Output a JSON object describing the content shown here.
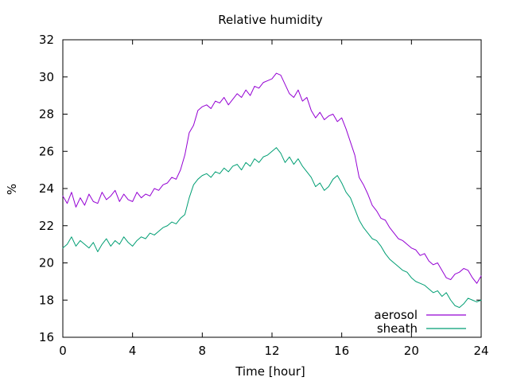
{
  "chart_data": {
    "type": "line",
    "title": "Relative humidity",
    "xlabel": "Time [hour]",
    "ylabel": "%",
    "xlim": [
      0,
      24
    ],
    "ylim": [
      16,
      32
    ],
    "xticks": [
      0,
      4,
      8,
      12,
      16,
      20,
      24
    ],
    "yticks": [
      16,
      18,
      20,
      22,
      24,
      26,
      28,
      30,
      32
    ],
    "grid": false,
    "legend_position": "bottom-right",
    "series": [
      {
        "name": "aerosol",
        "color": "#9400d3",
        "x": [
          0,
          0.25,
          0.5,
          0.75,
          1,
          1.25,
          1.5,
          1.75,
          2,
          2.25,
          2.5,
          2.75,
          3,
          3.25,
          3.5,
          3.75,
          4,
          4.25,
          4.5,
          4.75,
          5,
          5.25,
          5.5,
          5.75,
          6,
          6.25,
          6.5,
          6.75,
          7,
          7.25,
          7.5,
          7.75,
          8,
          8.25,
          8.5,
          8.75,
          9,
          9.25,
          9.5,
          9.75,
          10,
          10.25,
          10.5,
          10.75,
          11,
          11.25,
          11.5,
          11.75,
          12,
          12.25,
          12.5,
          12.75,
          13,
          13.25,
          13.5,
          13.75,
          14,
          14.25,
          14.5,
          14.75,
          15,
          15.25,
          15.5,
          15.75,
          16,
          16.25,
          16.5,
          16.75,
          17,
          17.25,
          17.5,
          17.75,
          18,
          18.25,
          18.5,
          18.75,
          19,
          19.25,
          19.5,
          19.75,
          20,
          20.25,
          20.5,
          20.75,
          21,
          21.25,
          21.5,
          21.75,
          22,
          22.25,
          22.5,
          22.75,
          23,
          23.25,
          23.5,
          23.75,
          24
        ],
        "y": [
          23.6,
          23.2,
          23.8,
          23.0,
          23.5,
          23.1,
          23.7,
          23.3,
          23.2,
          23.8,
          23.4,
          23.6,
          23.9,
          23.3,
          23.7,
          23.4,
          23.3,
          23.8,
          23.5,
          23.7,
          23.6,
          24.0,
          23.9,
          24.2,
          24.3,
          24.6,
          24.5,
          25.0,
          25.8,
          27.0,
          27.4,
          28.2,
          28.4,
          28.5,
          28.3,
          28.7,
          28.6,
          28.9,
          28.5,
          28.8,
          29.1,
          28.9,
          29.3,
          29.0,
          29.5,
          29.4,
          29.7,
          29.8,
          29.9,
          30.2,
          30.1,
          29.6,
          29.1,
          28.9,
          29.3,
          28.7,
          28.9,
          28.2,
          27.8,
          28.1,
          27.7,
          27.9,
          28.0,
          27.6,
          27.8,
          27.2,
          26.5,
          25.8,
          24.6,
          24.2,
          23.7,
          23.1,
          22.8,
          22.4,
          22.3,
          21.9,
          21.6,
          21.3,
          21.2,
          21.0,
          20.8,
          20.7,
          20.4,
          20.5,
          20.1,
          19.9,
          20.0,
          19.6,
          19.2,
          19.1,
          19.4,
          19.5,
          19.7,
          19.6,
          19.2,
          18.9,
          19.3
        ]
      },
      {
        "name": "sheath",
        "color": "#009e73",
        "x": [
          0,
          0.25,
          0.5,
          0.75,
          1,
          1.25,
          1.5,
          1.75,
          2,
          2.25,
          2.5,
          2.75,
          3,
          3.25,
          3.5,
          3.75,
          4,
          4.25,
          4.5,
          4.75,
          5,
          5.25,
          5.5,
          5.75,
          6,
          6.25,
          6.5,
          6.75,
          7,
          7.25,
          7.5,
          7.75,
          8,
          8.25,
          8.5,
          8.75,
          9,
          9.25,
          9.5,
          9.75,
          10,
          10.25,
          10.5,
          10.75,
          11,
          11.25,
          11.5,
          11.75,
          12,
          12.25,
          12.5,
          12.75,
          13,
          13.25,
          13.5,
          13.75,
          14,
          14.25,
          14.5,
          14.75,
          15,
          15.25,
          15.5,
          15.75,
          16,
          16.25,
          16.5,
          16.75,
          17,
          17.25,
          17.5,
          17.75,
          18,
          18.25,
          18.5,
          18.75,
          19,
          19.25,
          19.5,
          19.75,
          20,
          20.25,
          20.5,
          20.75,
          21,
          21.25,
          21.5,
          21.75,
          22,
          22.25,
          22.5,
          22.75,
          23,
          23.25,
          23.5,
          23.75,
          24
        ],
        "y": [
          20.8,
          21.0,
          21.4,
          20.9,
          21.2,
          21.0,
          20.8,
          21.1,
          20.6,
          21.0,
          21.3,
          20.9,
          21.2,
          21.0,
          21.4,
          21.1,
          20.9,
          21.2,
          21.4,
          21.3,
          21.6,
          21.5,
          21.7,
          21.9,
          22.0,
          22.2,
          22.1,
          22.4,
          22.6,
          23.5,
          24.2,
          24.5,
          24.7,
          24.8,
          24.6,
          24.9,
          24.8,
          25.1,
          24.9,
          25.2,
          25.3,
          25.0,
          25.4,
          25.2,
          25.6,
          25.4,
          25.7,
          25.8,
          26.0,
          26.2,
          25.9,
          25.4,
          25.7,
          25.3,
          25.6,
          25.2,
          24.9,
          24.6,
          24.1,
          24.3,
          23.9,
          24.1,
          24.5,
          24.7,
          24.3,
          23.8,
          23.5,
          22.9,
          22.3,
          21.9,
          21.6,
          21.3,
          21.2,
          20.9,
          20.5,
          20.2,
          20.0,
          19.8,
          19.6,
          19.5,
          19.2,
          19.0,
          18.9,
          18.8,
          18.6,
          18.4,
          18.5,
          18.2,
          18.4,
          18.0,
          17.7,
          17.6,
          17.8,
          18.1,
          18.0,
          17.9,
          18.0
        ]
      }
    ]
  }
}
